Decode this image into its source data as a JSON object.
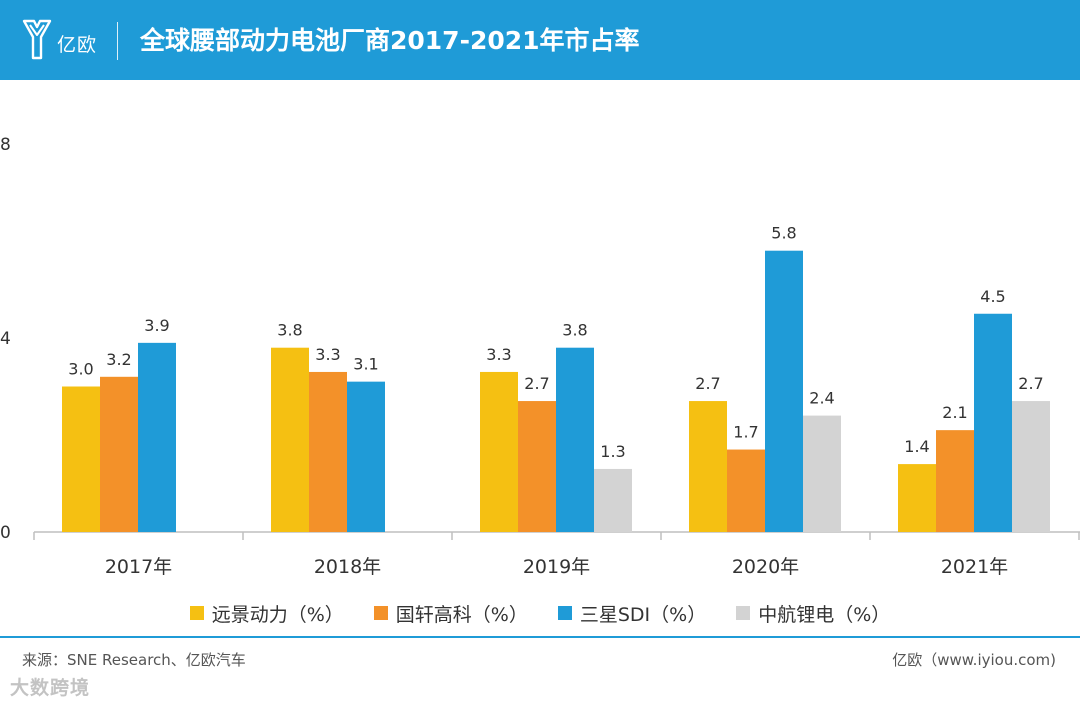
{
  "header": {
    "logo_text": "亿欧",
    "title": "全球腰部动力电池厂商2017-2021年市占率"
  },
  "chart_data": {
    "type": "bar",
    "title": "全球腰部动力电池厂商2017-2021年市占率",
    "categories": [
      "2017年",
      "2018年",
      "2019年",
      "2020年",
      "2021年"
    ],
    "series": [
      {
        "name": "远景动力（%）",
        "color": "#f5c012",
        "values": [
          3.0,
          3.8,
          3.3,
          2.7,
          1.4
        ]
      },
      {
        "name": "国轩高科（%）",
        "color": "#f39129",
        "values": [
          3.2,
          3.3,
          2.7,
          1.7,
          2.1
        ]
      },
      {
        "name": "三星SDI（%）",
        "color": "#1f9bd7",
        "values": [
          3.9,
          3.1,
          3.8,
          5.8,
          4.5
        ]
      },
      {
        "name": "中航锂电（%）",
        "color": "#d3d3d3",
        "values": [
          null,
          null,
          1.3,
          2.4,
          2.7
        ]
      }
    ],
    "yticks": [
      "0",
      "4",
      "8"
    ],
    "ylim": [
      0,
      8
    ],
    "xlabel": "",
    "ylabel": "",
    "grid": false,
    "legend": "bottom"
  },
  "footer": {
    "source": "来源：SNE Research、亿欧汽车",
    "website": "亿欧（www.iyiou.com)"
  },
  "watermark": {
    "text": "大数跨境"
  }
}
